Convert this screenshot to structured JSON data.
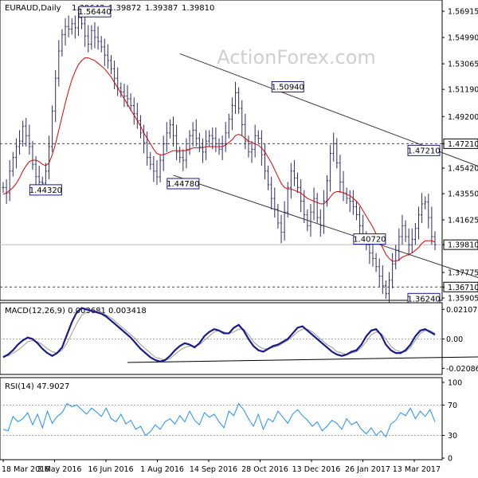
{
  "chart_data": {
    "type": "line",
    "header": {
      "symbol": "EURAUD,Daily",
      "ohlc": [
        "1.39642",
        "1.39872",
        "1.39387",
        "1.39810"
      ]
    },
    "watermark": "ActionForex.com",
    "x_tick_labels": [
      "18 Mar 2016",
      "3 May 2016",
      "16 Jun 2016",
      "1 Aug 2016",
      "14 Sep 2016",
      "28 Oct 2016",
      "13 Dec 2016",
      "26 Jan 2017",
      "13 Mar 2017"
    ],
    "price_panel": {
      "ylim": [
        1.3585,
        1.5762
      ],
      "y_tick_labels": [
        "1.56915",
        "1.54990",
        "1.53065",
        "1.51190",
        "1.49200",
        "1.47210",
        "1.45420",
        "1.43550",
        "1.41625",
        "1.39810",
        "1.37775",
        "1.36710",
        "1.35905"
      ],
      "highlight_levels": [
        {
          "value": 1.4721,
          "label": "1.47210",
          "style": "dashed"
        },
        {
          "value": 1.3981,
          "label": "1.39810",
          "style": "solid"
        },
        {
          "value": 1.3671,
          "label": "1.36710",
          "style": "dashed"
        }
      ],
      "annotations": [
        {
          "text": "1.56440",
          "x": 28,
          "y": 1.5644
        },
        {
          "text": "1.44320",
          "x": 13,
          "y": 1.4432
        },
        {
          "text": "1.50940",
          "x": 87,
          "y": 1.5094
        },
        {
          "text": "1.44780",
          "x": 55,
          "y": 1.4478
        },
        {
          "text": "1.40720",
          "x": 112,
          "y": 1.4072
        },
        {
          "text": "1.47210",
          "x": 139,
          "y": 1.4721
        },
        {
          "text": "1.36240",
          "x": 162,
          "y": 1.3624
        }
      ],
      "close_series": [
        1.44,
        1.436,
        1.452,
        1.462,
        1.47,
        1.474,
        1.485,
        1.478,
        1.47,
        1.457,
        1.448,
        1.444,
        1.4432,
        1.452,
        1.47,
        1.496,
        1.52,
        1.54,
        1.552,
        1.558,
        1.556,
        1.56,
        1.557,
        1.5644,
        1.56,
        1.551,
        1.545,
        1.555,
        1.55,
        1.547,
        1.543,
        1.537,
        1.533,
        1.527,
        1.52,
        1.513,
        1.51,
        1.507,
        1.505,
        1.5,
        1.494,
        1.489,
        1.48,
        1.473,
        1.462,
        1.457,
        1.452,
        1.4478,
        1.46,
        1.472,
        1.48,
        1.486,
        1.478,
        1.466,
        1.462,
        1.46,
        1.468,
        1.478,
        1.482,
        1.476,
        1.47,
        1.466,
        1.474,
        1.478,
        1.476,
        1.472,
        1.468,
        1.472,
        1.48,
        1.49,
        1.5,
        1.5094,
        1.498,
        1.486,
        1.474,
        1.466,
        1.468,
        1.478,
        1.476,
        1.464,
        1.452,
        1.442,
        1.432,
        1.424,
        1.414,
        1.4072,
        1.422,
        1.44,
        1.452,
        1.447,
        1.44,
        1.43,
        1.42,
        1.412,
        1.422,
        1.432,
        1.418,
        1.412,
        1.43,
        1.445,
        1.465,
        1.4721,
        1.458,
        1.444,
        1.436,
        1.432,
        1.43,
        1.426,
        1.42,
        1.412,
        1.404,
        1.398,
        1.392,
        1.388,
        1.382,
        1.375,
        1.368,
        1.3624,
        1.372,
        1.384,
        1.394,
        1.404,
        1.412,
        1.404,
        1.398,
        1.402,
        1.41,
        1.42,
        1.428,
        1.4295,
        1.418,
        1.404,
        1.3981
      ],
      "ma_series": [
        1.435,
        1.436,
        1.438,
        1.44,
        1.443,
        1.447,
        1.452,
        1.456,
        1.459,
        1.46,
        1.46,
        1.459,
        1.457,
        1.456,
        1.458,
        1.464,
        1.472,
        1.482,
        1.492,
        1.502,
        1.511,
        1.519,
        1.525,
        1.53,
        1.533,
        1.535,
        1.535,
        1.534,
        1.533,
        1.531,
        1.529,
        1.527,
        1.524,
        1.521,
        1.517,
        1.513,
        1.509,
        1.505,
        1.501,
        1.497,
        1.493,
        1.489,
        1.485,
        1.48,
        1.476,
        1.472,
        1.468,
        1.465,
        1.464,
        1.464,
        1.465,
        1.466,
        1.467,
        1.467,
        1.467,
        1.467,
        1.467,
        1.468,
        1.469,
        1.469,
        1.469,
        1.469,
        1.47,
        1.47,
        1.47,
        1.47,
        1.47,
        1.47,
        1.471,
        1.473,
        1.475,
        1.478,
        1.479,
        1.478,
        1.476,
        1.474,
        1.473,
        1.472,
        1.471,
        1.469,
        1.466,
        1.462,
        1.458,
        1.453,
        1.448,
        1.443,
        1.44,
        1.439,
        1.439,
        1.438,
        1.437,
        1.436,
        1.434,
        1.432,
        1.431,
        1.43,
        1.429,
        1.428,
        1.428,
        1.43,
        1.433,
        1.436,
        1.437,
        1.437,
        1.436,
        1.435,
        1.434,
        1.432,
        1.43,
        1.427,
        1.423,
        1.419,
        1.415,
        1.411,
        1.406,
        1.401,
        1.396,
        1.391,
        1.388,
        1.386,
        1.386,
        1.387,
        1.389,
        1.39,
        1.391,
        1.392,
        1.394,
        1.396,
        1.399,
        1.401,
        1.401,
        1.401,
        1.4
      ],
      "channel_lines": [
        {
          "x": [
            54,
            168
          ],
          "y": [
            1.538,
            1.435
          ]
        },
        {
          "x": [
            52,
            170
          ],
          "y": [
            1.449,
            1.354
          ]
        }
      ]
    },
    "macd_panel": {
      "title": "MACD(12,26,9) 0.003681 0.003418",
      "y_tick_labels": [
        "0.021079",
        "0.00",
        "-0.020866"
      ],
      "ylim": [
        -0.0235,
        0.0235
      ],
      "zero_line": 0.0,
      "trend_line": {
        "x": [
          38,
          170
        ],
        "y": [
          -0.0167,
          -0.0118
        ]
      },
      "macd_series": [
        -0.013,
        -0.011,
        -0.008,
        -0.004,
        -0.001,
        0.001,
        0.0,
        -0.003,
        -0.007,
        -0.01,
        -0.012,
        -0.01,
        -0.006,
        0.003,
        0.012,
        0.019,
        0.022,
        0.021,
        0.02,
        0.019,
        0.018,
        0.016,
        0.013,
        0.01,
        0.007,
        0.004,
        0.001,
        -0.003,
        -0.007,
        -0.01,
        -0.013,
        -0.015,
        -0.016,
        -0.015,
        -0.012,
        -0.008,
        -0.005,
        -0.003,
        -0.004,
        -0.006,
        -0.003,
        0.002,
        0.005,
        0.007,
        0.006,
        0.004,
        0.004,
        0.008,
        0.01,
        0.006,
        0.0,
        -0.005,
        -0.008,
        -0.009,
        -0.007,
        -0.005,
        -0.004,
        -0.002,
        0.0,
        0.004,
        0.008,
        0.009,
        0.006,
        0.003,
        0.0,
        -0.003,
        -0.006,
        -0.009,
        -0.011,
        -0.012,
        -0.011,
        -0.009,
        -0.008,
        -0.004,
        0.002,
        0.006,
        0.007,
        0.003,
        -0.004,
        -0.008,
        -0.01,
        -0.01,
        -0.008,
        -0.004,
        0.002,
        0.006,
        0.007,
        0.005,
        0.003
      ],
      "signal_series": [
        -0.012,
        -0.012,
        -0.01,
        -0.008,
        -0.005,
        -0.002,
        -0.001,
        -0.002,
        -0.004,
        -0.007,
        -0.009,
        -0.01,
        -0.008,
        -0.003,
        0.004,
        0.011,
        0.017,
        0.019,
        0.02,
        0.02,
        0.019,
        0.017,
        0.015,
        0.012,
        0.009,
        0.006,
        0.003,
        0.0,
        -0.004,
        -0.007,
        -0.01,
        -0.013,
        -0.014,
        -0.015,
        -0.014,
        -0.011,
        -0.008,
        -0.006,
        -0.005,
        -0.005,
        -0.004,
        -0.001,
        0.002,
        0.005,
        0.006,
        0.005,
        0.004,
        0.005,
        0.007,
        0.007,
        0.003,
        -0.002,
        -0.005,
        -0.007,
        -0.007,
        -0.006,
        -0.005,
        -0.003,
        -0.001,
        0.002,
        0.005,
        0.007,
        0.007,
        0.005,
        0.002,
        -0.001,
        -0.004,
        -0.006,
        -0.009,
        -0.01,
        -0.011,
        -0.01,
        -0.009,
        -0.006,
        -0.002,
        0.003,
        0.005,
        0.004,
        0.0,
        -0.005,
        -0.008,
        -0.009,
        -0.009,
        -0.006,
        -0.001,
        0.004,
        0.006,
        0.006,
        0.004
      ]
    },
    "rsi_panel": {
      "title": "RSI(14) 47.9027",
      "y_tick_labels": [
        "100",
        "70",
        "30",
        "0"
      ],
      "ylim": [
        0,
        100
      ],
      "levels": [
        70,
        30
      ],
      "rsi_series": [
        38,
        36,
        55,
        48,
        52,
        60,
        44,
        58,
        40,
        62,
        46,
        55,
        60,
        72,
        68,
        70,
        64,
        58,
        66,
        61,
        55,
        66,
        52,
        48,
        58,
        45,
        50,
        38,
        42,
        30,
        35,
        44,
        38,
        48,
        52,
        45,
        56,
        48,
        62,
        50,
        44,
        60,
        54,
        58,
        48,
        40,
        62,
        56,
        72,
        64,
        52,
        42,
        58,
        38,
        52,
        48,
        62,
        54,
        46,
        58,
        64,
        56,
        50,
        42,
        48,
        36,
        42,
        50,
        46,
        38,
        52,
        44,
        48,
        38,
        32,
        40,
        30,
        36,
        28,
        45,
        50,
        60,
        56,
        66,
        52,
        62,
        55,
        64,
        48
      ]
    }
  }
}
